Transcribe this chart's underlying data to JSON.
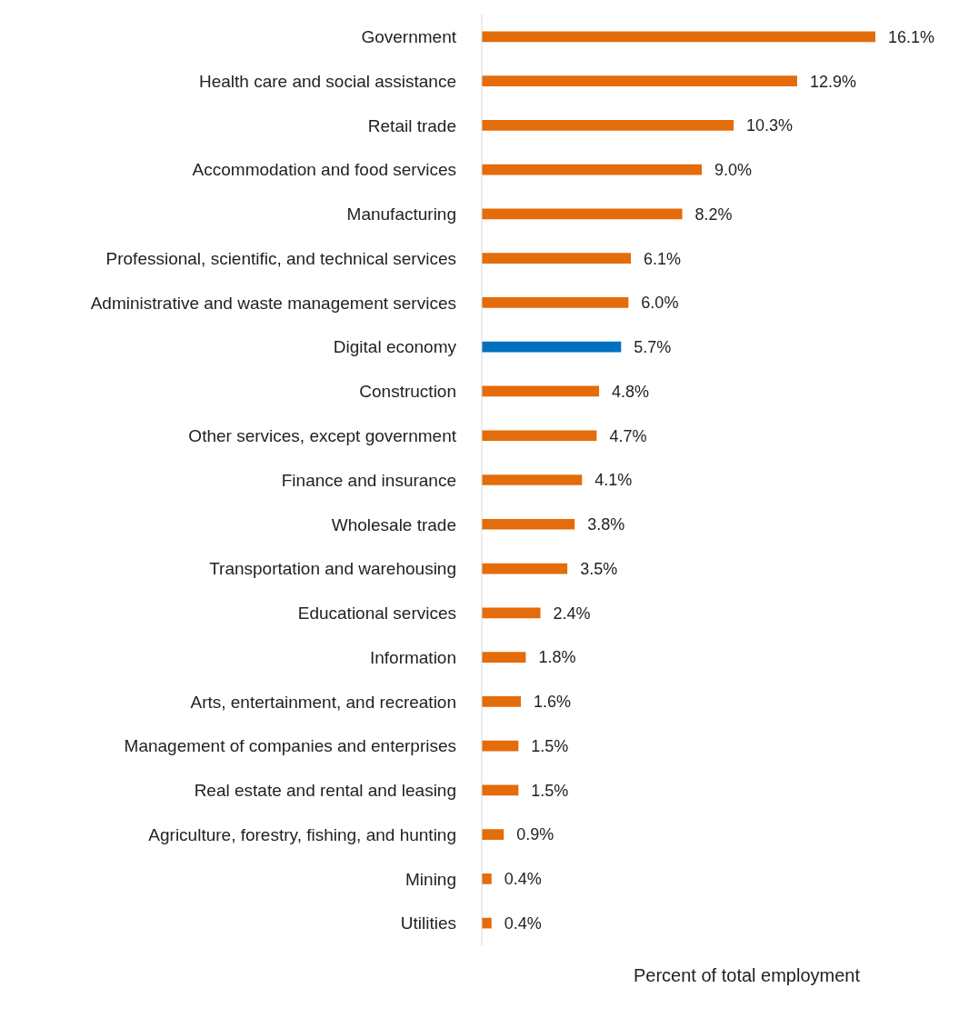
{
  "chart_data": {
    "type": "bar",
    "orientation": "horizontal",
    "xlabel": "Percent of total employment",
    "categories": [
      "Government",
      "Health care and social assistance",
      "Retail trade",
      "Accommodation and food services",
      "Manufacturing",
      "Professional, scientific, and technical services",
      "Administrative and waste management services",
      "Digital economy",
      "Construction",
      "Other services, except government",
      "Finance and insurance",
      "Wholesale trade",
      "Transportation and warehousing",
      "Educational services",
      "Information",
      "Arts, entertainment, and recreation",
      "Management of companies and enterprises",
      "Real estate and rental and leasing",
      "Agriculture, forestry, fishing, and hunting",
      "Mining",
      "Utilities"
    ],
    "values": [
      16.1,
      12.9,
      10.3,
      9.0,
      8.2,
      6.1,
      6.0,
      5.7,
      4.8,
      4.7,
      4.1,
      3.8,
      3.5,
      2.4,
      1.8,
      1.6,
      1.5,
      1.5,
      0.9,
      0.4,
      0.4
    ],
    "value_labels": [
      "16.1%",
      "12.9%",
      "10.3%",
      "9.0%",
      "8.2%",
      "6.1%",
      "6.0%",
      "5.7%",
      "4.8%",
      "4.7%",
      "4.1%",
      "3.8%",
      "3.5%",
      "2.4%",
      "1.8%",
      "1.6%",
      "1.5%",
      "1.5%",
      "0.9%",
      "0.4%",
      "0.4%"
    ],
    "colors": [
      "#e46c0a",
      "#e46c0a",
      "#e46c0a",
      "#e46c0a",
      "#e46c0a",
      "#e46c0a",
      "#e46c0a",
      "#0070c0",
      "#e46c0a",
      "#e46c0a",
      "#e46c0a",
      "#e46c0a",
      "#e46c0a",
      "#e46c0a",
      "#e46c0a",
      "#e46c0a",
      "#e46c0a",
      "#e46c0a",
      "#e46c0a",
      "#e46c0a",
      "#e46c0a"
    ],
    "grid": false,
    "legend": false
  }
}
